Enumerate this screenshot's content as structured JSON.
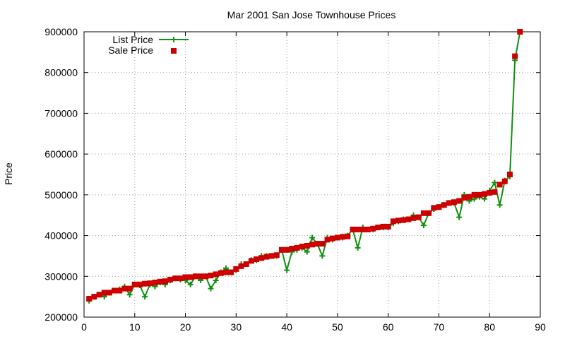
{
  "chart_data": {
    "type": "line",
    "title": "Mar 2001 San Jose Townhouse Prices",
    "xlabel": "",
    "ylabel": "Price",
    "xlim": [
      0,
      90
    ],
    "ylim": [
      200000,
      900000
    ],
    "x_ticks": [
      "0",
      "10",
      "20",
      "30",
      "40",
      "50",
      "60",
      "70",
      "80",
      "90"
    ],
    "y_ticks": [
      "200000",
      "300000",
      "400000",
      "500000",
      "600000",
      "700000",
      "800000",
      "900000"
    ],
    "grid": true,
    "legend_position": "top-left",
    "series": [
      {
        "name": "List Price",
        "style": "line-points",
        "marker": "plus",
        "color": "#109010",
        "x": [
          1,
          2,
          3,
          4,
          5,
          6,
          7,
          8,
          9,
          10,
          11,
          12,
          13,
          14,
          15,
          16,
          17,
          18,
          19,
          20,
          21,
          22,
          23,
          24,
          25,
          26,
          27,
          28,
          29,
          30,
          31,
          32,
          33,
          34,
          35,
          36,
          37,
          38,
          39,
          40,
          41,
          42,
          43,
          44,
          45,
          46,
          47,
          48,
          49,
          50,
          51,
          52,
          53,
          54,
          55,
          56,
          57,
          58,
          59,
          60,
          61,
          62,
          63,
          64,
          65,
          66,
          67,
          68,
          69,
          70,
          71,
          72,
          73,
          74,
          75,
          76,
          77,
          78,
          79,
          80,
          81,
          82,
          83,
          84,
          85,
          86
        ],
        "values": [
          240000,
          250000,
          255000,
          250000,
          260000,
          265000,
          268000,
          275000,
          255000,
          280000,
          278000,
          250000,
          280000,
          275000,
          285000,
          280000,
          290000,
          295000,
          292000,
          290000,
          280000,
          300000,
          290000,
          300000,
          270000,
          290000,
          310000,
          320000,
          310000,
          315000,
          330000,
          330000,
          340000,
          340000,
          350000,
          350000,
          350000,
          350000,
          365000,
          315000,
          360000,
          365000,
          370000,
          360000,
          395000,
          380000,
          350000,
          395000,
          390000,
          395000,
          395000,
          400000,
          415000,
          370000,
          420000,
          415000,
          415000,
          420000,
          420000,
          420000,
          430000,
          435000,
          440000,
          440000,
          450000,
          445000,
          425000,
          455000,
          465000,
          470000,
          475000,
          480000,
          480000,
          445000,
          500000,
          485000,
          490000,
          495000,
          490000,
          510000,
          530000,
          475000,
          535000,
          545000,
          830000,
          900000
        ]
      },
      {
        "name": "Sale Price",
        "style": "points",
        "marker": "square",
        "color": "#cc0000",
        "x": [
          1,
          2,
          3,
          4,
          5,
          6,
          7,
          8,
          9,
          10,
          11,
          12,
          13,
          14,
          15,
          16,
          17,
          18,
          19,
          20,
          21,
          22,
          23,
          24,
          25,
          26,
          27,
          28,
          29,
          30,
          31,
          32,
          33,
          34,
          35,
          36,
          37,
          38,
          39,
          40,
          41,
          42,
          43,
          44,
          45,
          46,
          47,
          48,
          49,
          50,
          51,
          52,
          53,
          54,
          55,
          56,
          57,
          58,
          59,
          60,
          61,
          62,
          63,
          64,
          65,
          66,
          67,
          68,
          69,
          70,
          71,
          72,
          73,
          74,
          75,
          76,
          77,
          78,
          79,
          80,
          81,
          82,
          83,
          84,
          85,
          86
        ],
        "values": [
          245000,
          250000,
          255000,
          260000,
          260000,
          265000,
          265000,
          270000,
          270000,
          280000,
          280000,
          282000,
          283000,
          285000,
          287000,
          288000,
          292000,
          295000,
          295000,
          298000,
          298000,
          300000,
          300000,
          300000,
          302000,
          305000,
          308000,
          310000,
          310000,
          318000,
          325000,
          330000,
          338000,
          342000,
          345000,
          348000,
          350000,
          352000,
          365000,
          365000,
          368000,
          370000,
          373000,
          375000,
          378000,
          380000,
          380000,
          390000,
          393000,
          395000,
          397000,
          398000,
          415000,
          415000,
          415000,
          415000,
          417000,
          420000,
          422000,
          422000,
          435000,
          437000,
          438000,
          440000,
          443000,
          445000,
          455000,
          455000,
          468000,
          470000,
          475000,
          480000,
          482000,
          485000,
          493000,
          495000,
          500000,
          500000,
          502000,
          505000,
          507000,
          525000,
          533000,
          550000,
          840000,
          900000
        ]
      }
    ]
  }
}
